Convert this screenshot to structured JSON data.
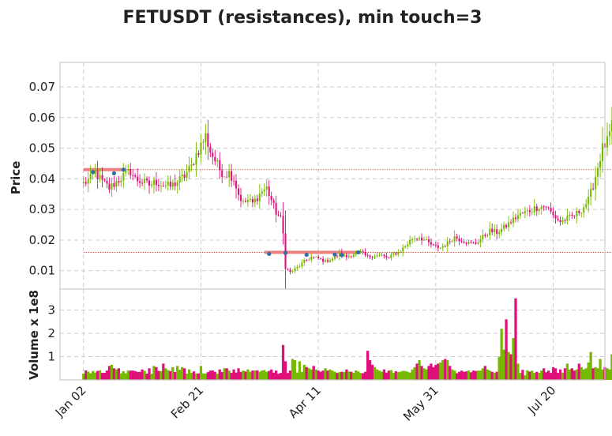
{
  "chart_data": {
    "type": "candlestick",
    "title": "FETUSDT (resistances), min touch=3",
    "price_panel": {
      "ylabel": "Price",
      "ylim": [
        0.004,
        0.078
      ],
      "yticks": [
        0.01,
        0.02,
        0.03,
        0.04,
        0.05,
        0.06,
        0.07
      ],
      "ytick_labels": [
        "0.01",
        "0.02",
        "0.03",
        "0.04",
        "0.05",
        "0.06",
        "0.07"
      ]
    },
    "volume_panel": {
      "ylabel": "Volume x 1e8",
      "ylim": [
        0,
        3.9
      ],
      "yticks": [
        1,
        2,
        3
      ],
      "ytick_labels": [
        "1",
        "2",
        "3"
      ]
    },
    "x_axis": {
      "xlim": [
        -10,
        222
      ],
      "ticks": [
        0,
        50,
        100,
        150,
        200
      ],
      "tick_labels": [
        "Jan 02",
        "Feb 21",
        "Apr 11",
        "May 31",
        "Jul 20"
      ]
    },
    "grid": true,
    "colors": {
      "up": "#76b900",
      "down": "#e0107a",
      "resistance_band": "#f08080",
      "resistance_line": "#c0392b",
      "touch_marker": "#2f6fa3",
      "grid": "#cccccc",
      "frame": "#cccccc"
    },
    "price_anchors": [
      [
        0,
        0.0385
      ],
      [
        3,
        0.04
      ],
      [
        5,
        0.042
      ],
      [
        8,
        0.039
      ],
      [
        11,
        0.037
      ],
      [
        14,
        0.039
      ],
      [
        17,
        0.041
      ],
      [
        20,
        0.0425
      ],
      [
        22,
        0.04
      ],
      [
        25,
        0.039
      ],
      [
        28,
        0.038
      ],
      [
        31,
        0.039
      ],
      [
        34,
        0.038
      ],
      [
        37,
        0.0375
      ],
      [
        40,
        0.039
      ],
      [
        43,
        0.041
      ],
      [
        46,
        0.044
      ],
      [
        48,
        0.048
      ],
      [
        50,
        0.051
      ],
      [
        52,
        0.054
      ],
      [
        54,
        0.049
      ],
      [
        56,
        0.046
      ],
      [
        58,
        0.043
      ],
      [
        60,
        0.0415
      ],
      [
        62,
        0.042
      ],
      [
        64,
        0.04
      ],
      [
        66,
        0.035
      ],
      [
        68,
        0.032
      ],
      [
        70,
        0.033
      ],
      [
        72,
        0.032
      ],
      [
        74,
        0.034
      ],
      [
        76,
        0.036
      ],
      [
        78,
        0.037
      ],
      [
        80,
        0.033
      ],
      [
        82,
        0.029
      ],
      [
        84,
        0.027
      ],
      [
        85,
        0.022
      ],
      [
        86,
        0.011
      ],
      [
        88,
        0.0095
      ],
      [
        91,
        0.011
      ],
      [
        94,
        0.013
      ],
      [
        97,
        0.0145
      ],
      [
        100,
        0.014
      ],
      [
        103,
        0.013
      ],
      [
        106,
        0.014
      ],
      [
        109,
        0.0155
      ],
      [
        112,
        0.0145
      ],
      [
        115,
        0.0155
      ],
      [
        118,
        0.016
      ],
      [
        121,
        0.0145
      ],
      [
        124,
        0.015
      ],
      [
        127,
        0.015
      ],
      [
        130,
        0.014
      ],
      [
        132,
        0.0155
      ],
      [
        134,
        0.016
      ],
      [
        137,
        0.018
      ],
      [
        140,
        0.0205
      ],
      [
        143,
        0.021
      ],
      [
        146,
        0.0195
      ],
      [
        149,
        0.018
      ],
      [
        152,
        0.0175
      ],
      [
        155,
        0.019
      ],
      [
        158,
        0.021
      ],
      [
        161,
        0.02
      ],
      [
        164,
        0.019
      ],
      [
        167,
        0.019
      ],
      [
        170,
        0.021
      ],
      [
        173,
        0.023
      ],
      [
        176,
        0.0225
      ],
      [
        179,
        0.024
      ],
      [
        182,
        0.026
      ],
      [
        185,
        0.028
      ],
      [
        188,
        0.029
      ],
      [
        191,
        0.03
      ],
      [
        194,
        0.031
      ],
      [
        197,
        0.031
      ],
      [
        200,
        0.028
      ],
      [
        203,
        0.026
      ],
      [
        206,
        0.027
      ],
      [
        209,
        0.028
      ],
      [
        212,
        0.03
      ],
      [
        215,
        0.033
      ],
      [
        217,
        0.038
      ],
      [
        219,
        0.044
      ],
      [
        221,
        0.05
      ],
      [
        223,
        0.052
      ],
      [
        225,
        0.057
      ],
      [
        227,
        0.053
      ],
      [
        229,
        0.05
      ],
      [
        231,
        0.052
      ],
      [
        233,
        0.062
      ],
      [
        235,
        0.071
      ]
    ],
    "price_noise": 0.0012,
    "volume_base": 0.35,
    "volume_spikes": [
      [
        4,
        0.38
      ],
      [
        10,
        0.4
      ],
      [
        11,
        0.6
      ],
      [
        12,
        0.65
      ],
      [
        13,
        0.5
      ],
      [
        14,
        0.45
      ],
      [
        15,
        0.5
      ],
      [
        20,
        0.4
      ],
      [
        25,
        0.45
      ],
      [
        28,
        0.5
      ],
      [
        30,
        0.6
      ],
      [
        31,
        0.55
      ],
      [
        34,
        0.7
      ],
      [
        35,
        0.5
      ],
      [
        38,
        0.55
      ],
      [
        40,
        0.6
      ],
      [
        42,
        0.55
      ],
      [
        43,
        0.5
      ],
      [
        45,
        0.45
      ],
      [
        50,
        0.6
      ],
      [
        54,
        0.4
      ],
      [
        58,
        0.45
      ],
      [
        60,
        0.5
      ],
      [
        61,
        0.5
      ],
      [
        64,
        0.45
      ],
      [
        66,
        0.5
      ],
      [
        68,
        0.4
      ],
      [
        70,
        0.45
      ],
      [
        72,
        0.4
      ],
      [
        75,
        0.35
      ],
      [
        76,
        0.4
      ],
      [
        78,
        0.35
      ],
      [
        80,
        0.45
      ],
      [
        82,
        0.4
      ],
      [
        84,
        0.3
      ],
      [
        85,
        1.5
      ],
      [
        86,
        0.8
      ],
      [
        88,
        0.4
      ],
      [
        89,
        0.9
      ],
      [
        90,
        0.85
      ],
      [
        92,
        0.8
      ],
      [
        94,
        0.65
      ],
      [
        95,
        0.55
      ],
      [
        96,
        0.5
      ],
      [
        97,
        0.45
      ],
      [
        98,
        0.6
      ],
      [
        99,
        0.45
      ],
      [
        100,
        0.4
      ],
      [
        101,
        0.35
      ],
      [
        103,
        0.5
      ],
      [
        104,
        0.4
      ],
      [
        105,
        0.45
      ],
      [
        106,
        0.4
      ],
      [
        107,
        0.35
      ],
      [
        108,
        0.3
      ],
      [
        110,
        0.35
      ],
      [
        112,
        0.45
      ],
      [
        115,
        0.3
      ],
      [
        118,
        0.3
      ],
      [
        120,
        0.35
      ],
      [
        121,
        1.25
      ],
      [
        122,
        0.85
      ],
      [
        123,
        0.65
      ],
      [
        124,
        0.55
      ],
      [
        125,
        0.45
      ],
      [
        126,
        0.4
      ],
      [
        127,
        0.35
      ],
      [
        128,
        0.45
      ],
      [
        130,
        0.4
      ],
      [
        132,
        0.3
      ],
      [
        135,
        0.35
      ],
      [
        138,
        0.35
      ],
      [
        140,
        0.45
      ],
      [
        141,
        0.55
      ],
      [
        142,
        0.7
      ],
      [
        143,
        0.85
      ],
      [
        144,
        0.6
      ],
      [
        145,
        0.5
      ],
      [
        146,
        0.45
      ],
      [
        147,
        0.6
      ],
      [
        148,
        0.7
      ],
      [
        149,
        0.55
      ],
      [
        150,
        0.65
      ],
      [
        151,
        0.7
      ],
      [
        152,
        0.75
      ],
      [
        153,
        0.85
      ],
      [
        154,
        0.9
      ],
      [
        155,
        0.85
      ],
      [
        156,
        0.6
      ],
      [
        157,
        0.45
      ],
      [
        158,
        0.4
      ],
      [
        160,
        0.35
      ],
      [
        162,
        0.35
      ],
      [
        164,
        0.4
      ],
      [
        166,
        0.4
      ],
      [
        168,
        0.4
      ],
      [
        170,
        0.5
      ],
      [
        171,
        0.6
      ],
      [
        172,
        0.45
      ],
      [
        173,
        0.4
      ],
      [
        174,
        0.35
      ],
      [
        175,
        0.3
      ],
      [
        176,
        0.35
      ],
      [
        177,
        1.0
      ],
      [
        178,
        2.2
      ],
      [
        179,
        1.3
      ],
      [
        180,
        2.6
      ],
      [
        181,
        1.2
      ],
      [
        182,
        1.1
      ],
      [
        183,
        1.8
      ],
      [
        184,
        3.5
      ],
      [
        185,
        0.7
      ],
      [
        186,
        0.3
      ],
      [
        188,
        0.2
      ],
      [
        192,
        0.3
      ],
      [
        195,
        0.4
      ],
      [
        196,
        0.5
      ],
      [
        198,
        0.4
      ],
      [
        200,
        0.55
      ],
      [
        201,
        0.5
      ],
      [
        203,
        0.45
      ],
      [
        205,
        0.5
      ],
      [
        206,
        0.7
      ],
      [
        207,
        0.45
      ],
      [
        208,
        0.5
      ],
      [
        209,
        0.4
      ],
      [
        210,
        0.45
      ],
      [
        211,
        0.7
      ],
      [
        212,
        0.55
      ],
      [
        213,
        0.45
      ],
      [
        214,
        0.5
      ],
      [
        215,
        0.75
      ],
      [
        216,
        1.2
      ],
      [
        217,
        0.5
      ],
      [
        218,
        0.55
      ],
      [
        219,
        0.5
      ],
      [
        220,
        0.9
      ],
      [
        221,
        0.45
      ],
      [
        222,
        0.55
      ],
      [
        223,
        0.5
      ],
      [
        224,
        0.45
      ],
      [
        225,
        1.1
      ],
      [
        226,
        0.4
      ],
      [
        227,
        0.45
      ],
      [
        228,
        0.5
      ],
      [
        229,
        0.35
      ],
      [
        230,
        0.5
      ],
      [
        231,
        1.3
      ],
      [
        232,
        0.45
      ],
      [
        233,
        0.3
      ],
      [
        234,
        0.25
      ],
      [
        235,
        0.35
      ]
    ],
    "resistances": [
      {
        "level": 0.043,
        "band_from": 0,
        "band_to": 18,
        "touches": [
          [
            4,
            0.0422
          ],
          [
            13,
            0.0418
          ],
          [
            17,
            0.043
          ]
        ]
      },
      {
        "level": 0.016,
        "band_from": 77,
        "band_to": 118,
        "touches": [
          [
            79,
            0.0155
          ],
          [
            86,
            0.0158
          ],
          [
            95,
            0.0152
          ],
          [
            107,
            0.0153
          ],
          [
            110,
            0.0151
          ],
          [
            117,
            0.016
          ]
        ]
      }
    ]
  }
}
